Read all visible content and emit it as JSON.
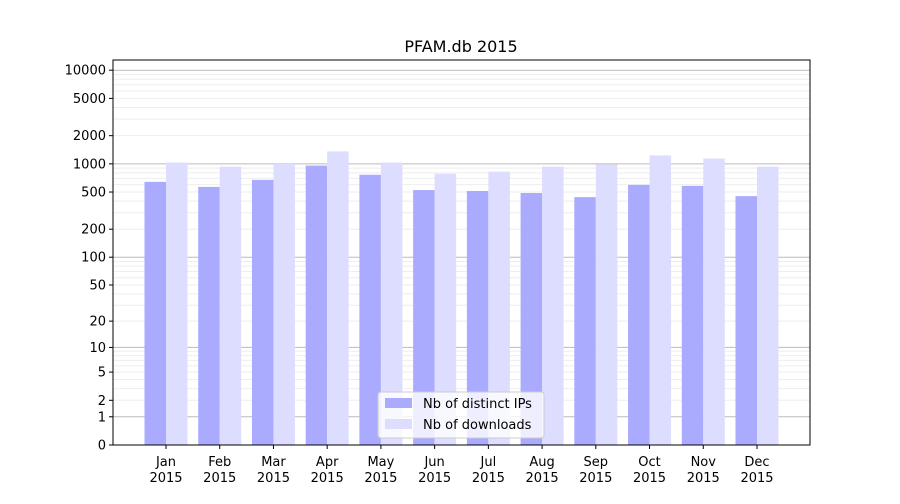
{
  "chart_data": {
    "type": "bar",
    "title": "PFAM.db 2015",
    "xlabel": "",
    "ylabel": "",
    "yscale": "symlog (log10(1+y))",
    "ylim": [
      0,
      12800
    ],
    "grid": true,
    "legend_position": "bottom-center",
    "categories": [
      "Jan\n2015",
      "Feb\n2015",
      "Mar\n2015",
      "Apr\n2015",
      "May\n2015",
      "Jun\n2015",
      "Jul\n2015",
      "Aug\n2015",
      "Sep\n2015",
      "Oct\n2015",
      "Nov\n2015",
      "Dec\n2015"
    ],
    "yticks": [
      0,
      1,
      2,
      5,
      10,
      20,
      50,
      100,
      200,
      500,
      1000,
      2000,
      5000,
      10000
    ],
    "series": [
      {
        "name": "Nb of distinct IPs",
        "color": "#aaaaff",
        "values": [
          642,
          567,
          675,
          958,
          765,
          525,
          513,
          488,
          441,
          596,
          582,
          452
        ]
      },
      {
        "name": "Nb of downloads",
        "color": "#ddddff",
        "values": [
          1033,
          935,
          1000,
          1360,
          1033,
          785,
          825,
          935,
          983,
          1230,
          1140,
          935
        ]
      }
    ]
  }
}
